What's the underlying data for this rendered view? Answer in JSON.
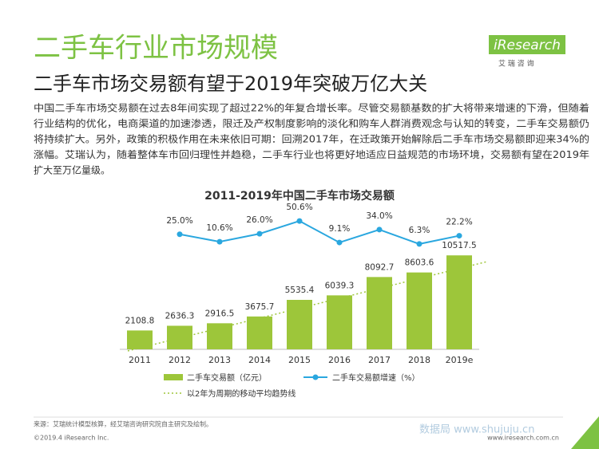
{
  "header": {
    "title": "二手车行业市场规模",
    "subtitle": "二手车市场交易额有望于2019年突破万亿大关",
    "logo": "iResearch",
    "logo_sub": "艾 瑞 咨 询"
  },
  "paragraph": [
    "中国二手车市场交易额在过去8年间实现了超过22%的年复合增长率。尽管交易额基数的扩大将带来增速的下滑，但随着",
    "行业结构的优化，电商渠道的加速渗透，限迁及产权制度影响的淡化和购车人群消费观念与认知的转变，二手车交易额仍",
    "将持续扩大。另外，政策的积极作用在未来依旧可期：回溯2017年，在迁政策开始解除后二手车市场交易额即迎来34%的",
    "涨幅。艾瑞认为，随着整体车市回归理性并趋稳，二手车行业也将更好地适应日益规范的市场环境，交易额有望在2019年",
    "扩大至万亿量级。"
  ],
  "chart_data": {
    "type": "bar",
    "title": "2011-2019年中国二手车市场交易额",
    "categories": [
      "2011",
      "2012",
      "2013",
      "2014",
      "2015",
      "2016",
      "2017",
      "2018",
      "2019e"
    ],
    "series": [
      {
        "name": "二手车交易额（亿元）",
        "color": "#9dc63a",
        "values": [
          2108.8,
          2636.3,
          2916.5,
          3675.7,
          5535.4,
          6039.3,
          8092.7,
          8603.6,
          10517.5
        ]
      },
      {
        "name": "二手车交易额增速（%）",
        "type": "line",
        "color": "#2aa7df",
        "values": [
          null,
          25.0,
          10.6,
          26.0,
          50.6,
          9.1,
          34.0,
          6.3,
          22.2
        ],
        "value_labels": [
          null,
          "25.0%",
          "10.6%",
          "26.0%",
          "50.6%",
          "9.1%",
          "34.0%",
          "6.3%",
          "22.2%"
        ]
      },
      {
        "name": "以2年为周期的移动平均趋势线",
        "color": "#9dc63a"
      }
    ]
  },
  "footer": {
    "source": "来源：艾瑞统计模型核算，经艾瑞咨询研究院自主研究及绘制。",
    "copyright": "©2019.4 iResearch Inc.",
    "website": "www.iresearch.com.cn",
    "page": "6",
    "watermark": "数据局  www.shujuju.cn"
  }
}
